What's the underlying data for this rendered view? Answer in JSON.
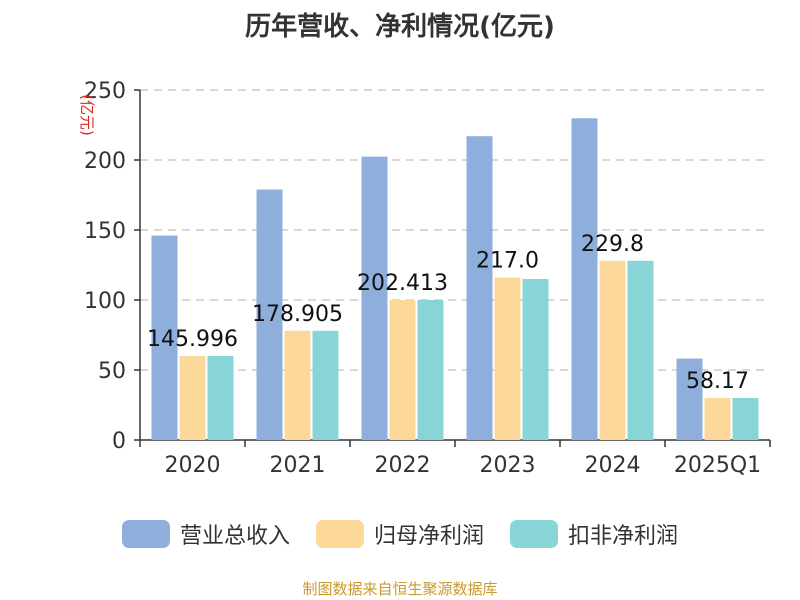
{
  "chart_data": {
    "type": "bar",
    "title": "历年营收、净利情况(亿元)",
    "ylabel": "(亿元)",
    "xlabel": "",
    "ylim": [
      0,
      250
    ],
    "yticks": [
      0,
      50,
      100,
      150,
      200,
      250
    ],
    "grid": true,
    "legend_position": "bottom",
    "categories": [
      "2020",
      "2021",
      "2022",
      "2023",
      "2024",
      "2025Q1"
    ],
    "series": [
      {
        "name": "营业总收入",
        "color": "#8eaedb",
        "values": [
          145.996,
          178.905,
          202.413,
          217.0,
          229.8,
          58.17
        ]
      },
      {
        "name": "归母净利润",
        "color": "#fdd89b",
        "values": [
          60.0,
          78.0,
          100.0,
          116.0,
          128.0,
          30.0
        ]
      },
      {
        "name": "扣非净利润",
        "color": "#88d5d8",
        "values": [
          60.0,
          78.0,
          100.0,
          115.0,
          128.0,
          30.0
        ]
      }
    ],
    "data_labels": [
      "145.996",
      "178.905",
      "202.413",
      "217.0",
      "229.8",
      "58.17"
    ]
  },
  "source": "制图数据来自恒生聚源数据库"
}
